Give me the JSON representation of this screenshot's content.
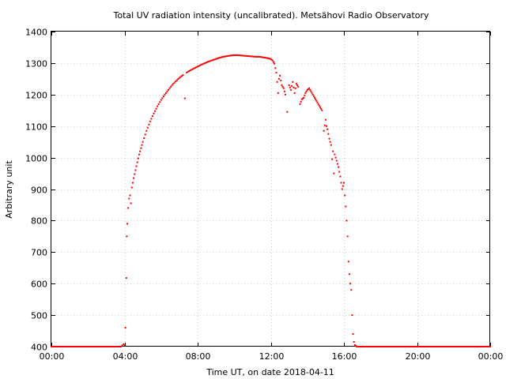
{
  "chart_data": {
    "type": "scatter",
    "title": "Total UV radiation intensity (uncalibrated). Metsähovi Radio Observatory",
    "xlabel": "Time UT, on date 2018-04-11",
    "ylabel": "Arbitrary unit",
    "xlim": [
      0,
      24
    ],
    "ylim": [
      400,
      1400
    ],
    "grid": true,
    "legend": "none",
    "point_color": "#ff0000",
    "x_ticks": [
      {
        "value": 0,
        "label": "00:00"
      },
      {
        "value": 4,
        "label": "04:00"
      },
      {
        "value": 8,
        "label": "08:00"
      },
      {
        "value": 12,
        "label": "12:00"
      },
      {
        "value": 16,
        "label": "16:00"
      },
      {
        "value": 20,
        "label": "20:00"
      },
      {
        "value": 24,
        "label": "00:00"
      }
    ],
    "y_ticks": [
      {
        "value": 400,
        "label": "400"
      },
      {
        "value": 500,
        "label": "500"
      },
      {
        "value": 600,
        "label": "600"
      },
      {
        "value": 700,
        "label": "700"
      },
      {
        "value": 800,
        "label": "800"
      },
      {
        "value": 900,
        "label": "900"
      },
      {
        "value": 1000,
        "label": "1000"
      },
      {
        "value": 1100,
        "label": "1100"
      },
      {
        "value": 1200,
        "label": "1200"
      },
      {
        "value": 1300,
        "label": "1300"
      },
      {
        "value": 1400,
        "label": "1400"
      }
    ],
    "x_unit": "hours UT",
    "series": [
      {
        "points": [
          [
            0.0,
            400
          ],
          [
            1.0,
            400
          ],
          [
            2.0,
            400
          ],
          [
            3.0,
            400
          ],
          [
            3.8,
            400
          ],
          [
            3.95,
            408
          ],
          [
            4.0,
            405
          ],
          [
            4.05,
            460
          ],
          [
            4.1,
            618
          ],
          [
            4.12,
            750
          ],
          [
            4.15,
            790
          ],
          [
            4.2,
            840
          ],
          [
            4.25,
            870
          ],
          [
            4.3,
            880
          ],
          [
            4.35,
            855
          ],
          [
            4.4,
            905
          ],
          [
            4.5,
            935
          ],
          [
            4.6,
            960
          ],
          [
            4.7,
            985
          ],
          [
            4.8,
            1010
          ],
          [
            4.9,
            1030
          ],
          [
            5.0,
            1050
          ],
          [
            5.2,
            1085
          ],
          [
            5.4,
            1115
          ],
          [
            5.6,
            1140
          ],
          [
            5.8,
            1163
          ],
          [
            6.0,
            1183
          ],
          [
            6.2,
            1200
          ],
          [
            6.4,
            1215
          ],
          [
            6.6,
            1230
          ],
          [
            6.8,
            1242
          ],
          [
            7.0,
            1253
          ],
          [
            7.2,
            1262
          ],
          [
            7.3,
            1188
          ],
          [
            7.4,
            1270
          ],
          [
            7.6,
            1277
          ],
          [
            7.8,
            1283
          ],
          [
            8.0,
            1289
          ],
          [
            8.2,
            1295
          ],
          [
            8.4,
            1300
          ],
          [
            8.6,
            1305
          ],
          [
            8.8,
            1309
          ],
          [
            9.0,
            1313
          ],
          [
            9.2,
            1317
          ],
          [
            9.4,
            1320
          ],
          [
            9.6,
            1322
          ],
          [
            9.8,
            1324
          ],
          [
            10.0,
            1325
          ],
          [
            10.2,
            1325
          ],
          [
            10.4,
            1324
          ],
          [
            10.6,
            1323
          ],
          [
            10.8,
            1322
          ],
          [
            11.0,
            1321
          ],
          [
            11.2,
            1320
          ],
          [
            11.4,
            1320
          ],
          [
            11.6,
            1318
          ],
          [
            11.8,
            1316
          ],
          [
            12.0,
            1313
          ],
          [
            12.1,
            1308
          ],
          [
            12.2,
            1298
          ],
          [
            12.3,
            1270
          ],
          [
            12.35,
            1240
          ],
          [
            12.4,
            1205
          ],
          [
            12.45,
            1250
          ],
          [
            12.5,
            1260
          ],
          [
            12.6,
            1230
          ],
          [
            12.7,
            1220
          ],
          [
            12.8,
            1200
          ],
          [
            12.9,
            1145
          ],
          [
            13.0,
            1230
          ],
          [
            13.1,
            1215
          ],
          [
            13.2,
            1240
          ],
          [
            13.3,
            1205
          ],
          [
            13.4,
            1235
          ],
          [
            13.5,
            1225
          ],
          [
            13.6,
            1170
          ],
          [
            13.7,
            1185
          ],
          [
            13.8,
            1190
          ],
          [
            13.9,
            1205
          ],
          [
            14.0,
            1215
          ],
          [
            14.1,
            1220
          ],
          [
            14.2,
            1210
          ],
          [
            14.3,
            1200
          ],
          [
            14.4,
            1190
          ],
          [
            14.5,
            1180
          ],
          [
            14.6,
            1170
          ],
          [
            14.7,
            1160
          ],
          [
            14.8,
            1150
          ],
          [
            14.9,
            1085
          ],
          [
            15.0,
            1120
          ],
          [
            15.05,
            1100
          ],
          [
            15.1,
            1090
          ],
          [
            15.2,
            1060
          ],
          [
            15.3,
            1040
          ],
          [
            15.35,
            995
          ],
          [
            15.4,
            1020
          ],
          [
            15.45,
            950
          ],
          [
            15.5,
            1010
          ],
          [
            15.6,
            990
          ],
          [
            15.7,
            970
          ],
          [
            15.8,
            940
          ],
          [
            15.9,
            900
          ],
          [
            16.0,
            920
          ],
          [
            16.05,
            880
          ],
          [
            16.1,
            845
          ],
          [
            16.15,
            800
          ],
          [
            16.2,
            750
          ],
          [
            16.25,
            670
          ],
          [
            16.3,
            630
          ],
          [
            16.35,
            600
          ],
          [
            16.4,
            580
          ],
          [
            16.45,
            500
          ],
          [
            16.5,
            440
          ],
          [
            16.55,
            415
          ],
          [
            16.6,
            405
          ],
          [
            16.7,
            400
          ],
          [
            17.0,
            400
          ],
          [
            18.0,
            400
          ],
          [
            19.0,
            400
          ],
          [
            20.0,
            400
          ],
          [
            21.0,
            400
          ],
          [
            22.0,
            400
          ],
          [
            23.0,
            400
          ],
          [
            24.0,
            400
          ]
        ]
      }
    ]
  }
}
